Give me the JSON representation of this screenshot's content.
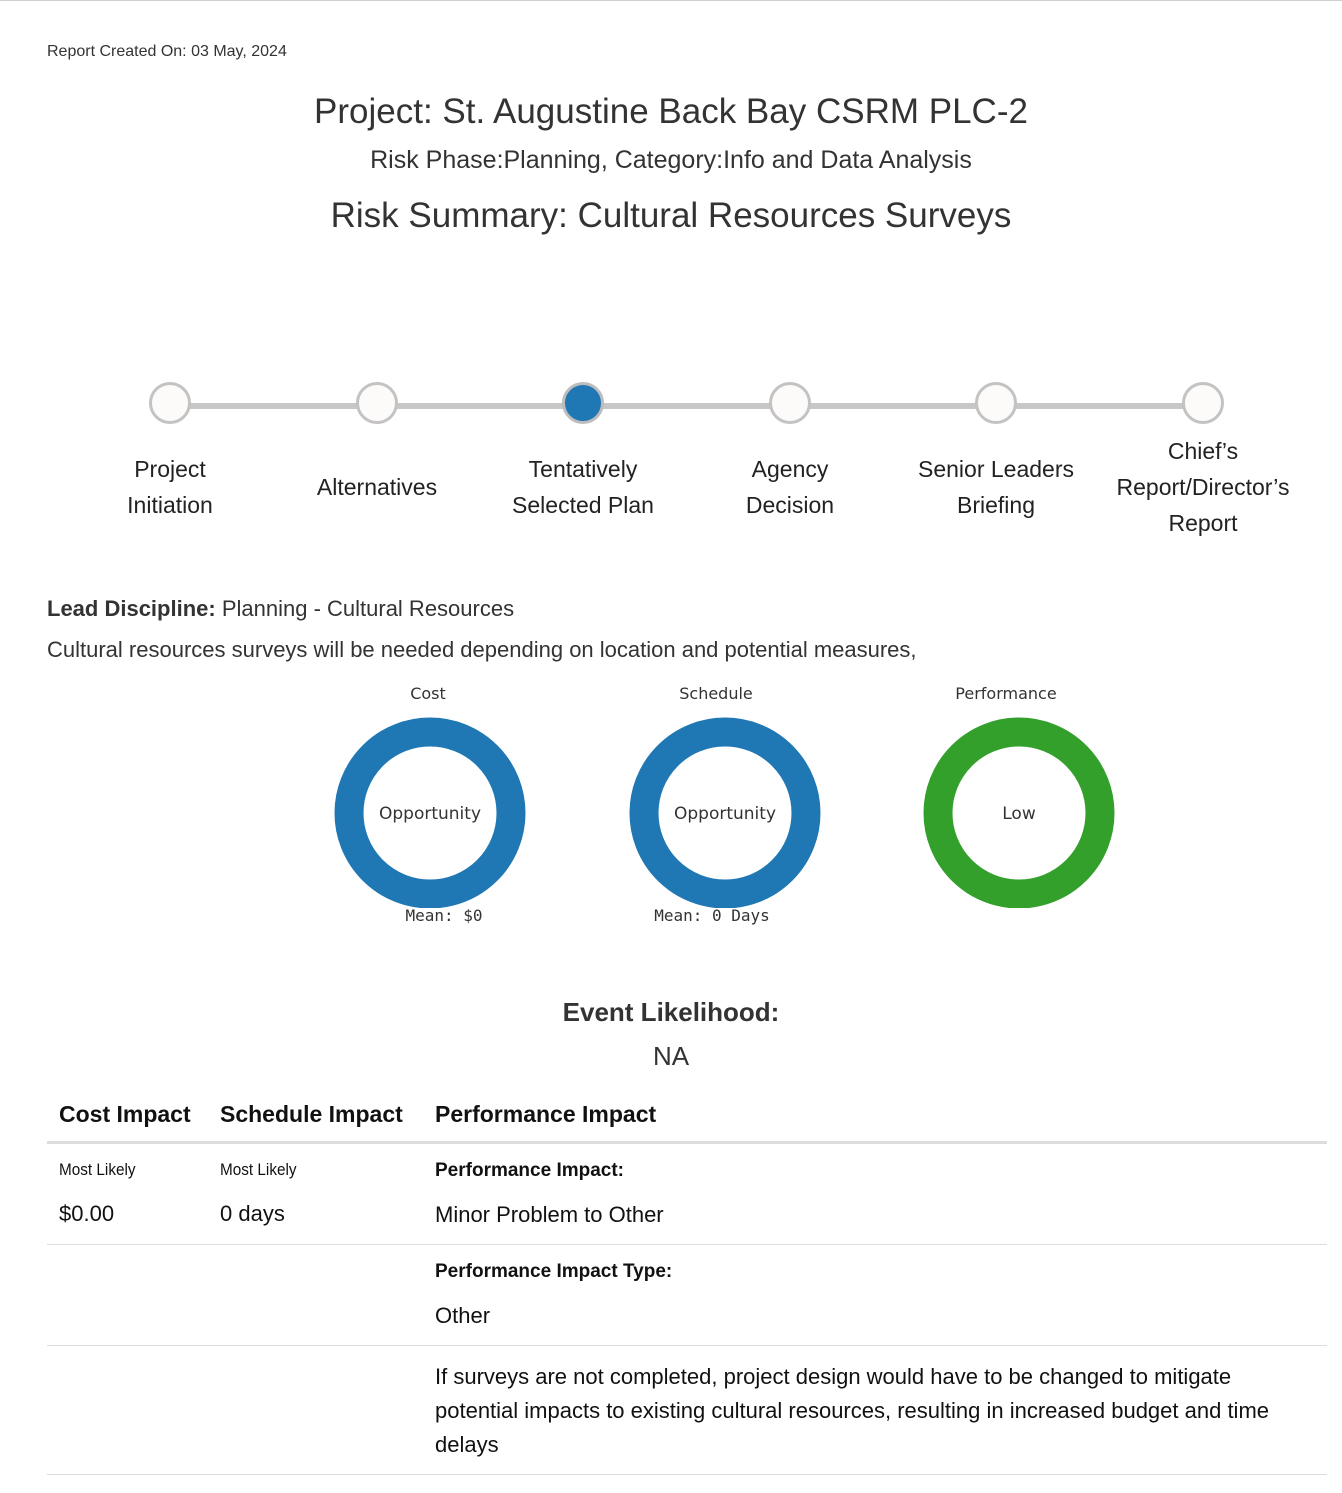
{
  "report_created": "Report Created On: 03 May, 2024",
  "project_title": "Project: St. Augustine Back Bay CSRM PLC-2",
  "phase_line": "Risk Phase:Planning, Category:Info and Data Analysis",
  "summary_title": "Risk Summary: Cultural Resources Surveys",
  "milestones": [
    {
      "label_line1": "Project",
      "label_line2": "Initiation",
      "label_line3": "",
      "active": false
    },
    {
      "label_line1": "Alternatives",
      "label_line2": "",
      "label_line3": "",
      "active": false
    },
    {
      "label_line1": "Tentatively",
      "label_line2": "Selected Plan",
      "label_line3": "",
      "active": true
    },
    {
      "label_line1": "Agency",
      "label_line2": "Decision",
      "label_line3": "",
      "active": false
    },
    {
      "label_line1": "Senior Leaders",
      "label_line2": "Briefing",
      "label_line3": "",
      "active": false
    },
    {
      "label_line1": "Chief’s",
      "label_line2": "Report/Director’s",
      "label_line3": "Report",
      "active": false
    }
  ],
  "lead_discipline_label": "Lead Discipline:",
  "lead_discipline_value": " Planning - Cultural Resources",
  "description": "Cultural resources surveys will be needed depending on location and potential measures,",
  "gauges": [
    {
      "title": "Cost",
      "center_label": "Opportunity",
      "mean": "Mean: $0",
      "color": "#1f77b4"
    },
    {
      "title": "Schedule",
      "center_label": "Opportunity",
      "mean": "Mean: 0 Days",
      "color": "#1f77b4"
    },
    {
      "title": "Performance",
      "center_label": "Low",
      "mean": "",
      "color": "#33a02c"
    }
  ],
  "likelihood": {
    "label": "Event Likelihood:",
    "value": "NA"
  },
  "impact_table": {
    "headers": [
      "Cost Impact",
      "Schedule Impact",
      "Performance Impact"
    ],
    "cost_most_likely_label": "Most Likely",
    "cost_most_likely_value": "$0.00",
    "schedule_most_likely_label": "Most Likely",
    "schedule_most_likely_value": "0 days",
    "performance_impact_label": "Performance Impact:",
    "performance_impact_value": "Minor Problem to Other",
    "performance_type_label": "Performance Impact Type:",
    "performance_type_value": "Other",
    "performance_description": "If surveys are not completed, project design would have to be changed to mitigate potential impacts to existing cultural resources, resulting in increased budget and time delays"
  }
}
